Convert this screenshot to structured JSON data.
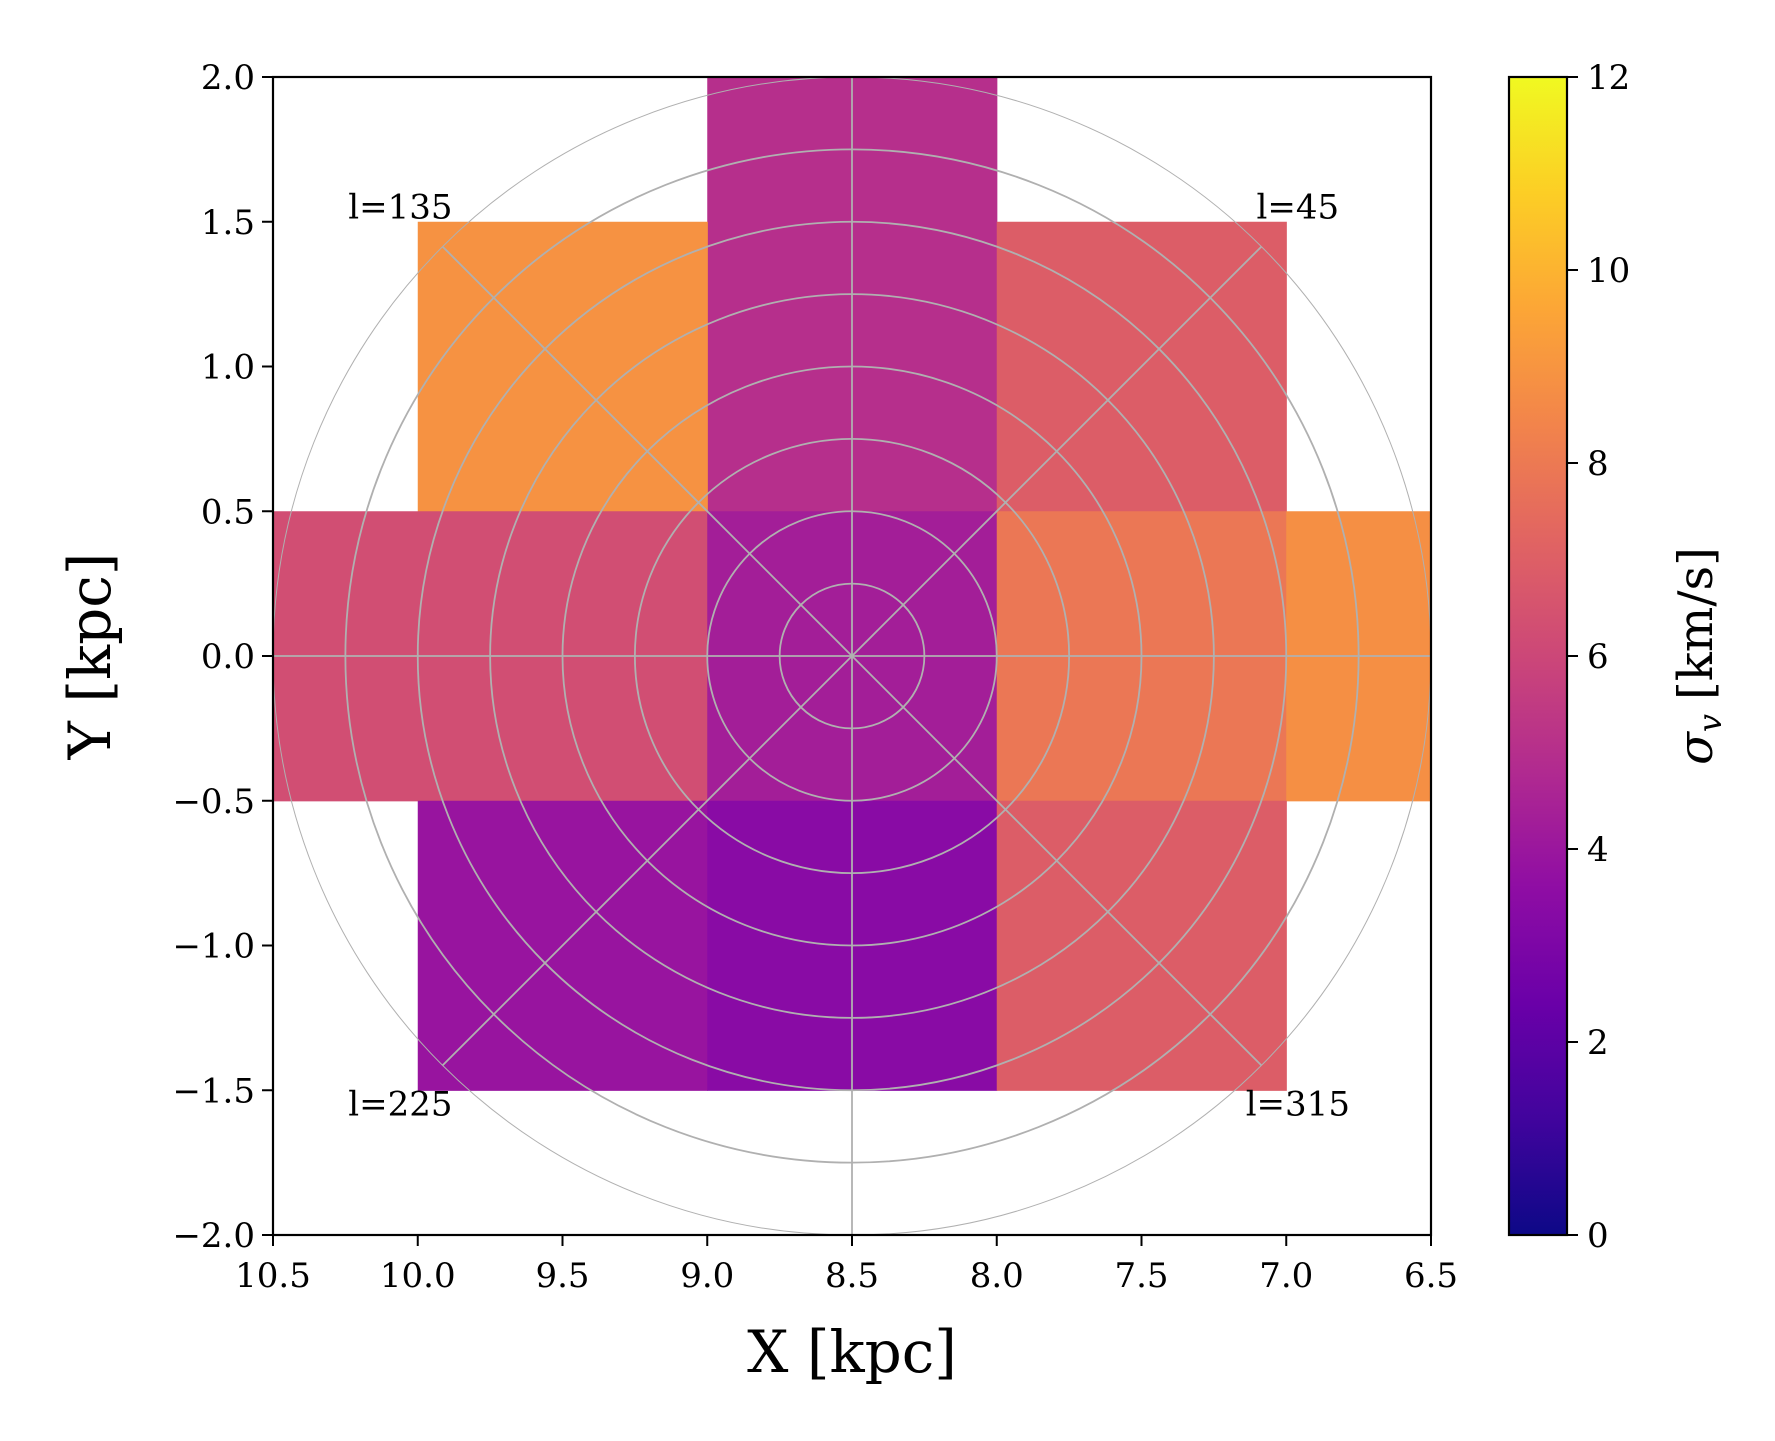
{
  "chart_data": {
    "type": "heatmap",
    "xlabel": "X [kpc]",
    "ylabel": "Y [kpc]",
    "xlim": [
      10.5,
      6.5
    ],
    "ylim": [
      -2.0,
      2.0
    ],
    "x_ticks": [
      "10.5",
      "10.0",
      "9.5",
      "9.0",
      "8.5",
      "8.0",
      "7.5",
      "7.0",
      "6.5"
    ],
    "y_ticks": [
      "2.0",
      "1.5",
      "1.0",
      "0.5",
      "0.0",
      "−0.5",
      "−1.0",
      "−1.5",
      "−2.0"
    ],
    "colorbar": {
      "label": "σv [km/s]",
      "label_symbol": "σ",
      "label_subscript": "v",
      "label_units": "[km/s]",
      "colormap": "plasma",
      "range": [
        0,
        12
      ],
      "ticks": [
        "0",
        "2",
        "4",
        "6",
        "8",
        "10",
        "12"
      ]
    },
    "cells": [
      {
        "x": [
          9.0,
          8.0
        ],
        "y": [
          0.5,
          2.0
        ],
        "value": 5.0
      },
      {
        "x": [
          10.0,
          9.0
        ],
        "y": [
          0.5,
          1.5
        ],
        "value": 8.9
      },
      {
        "x": [
          8.0,
          7.0
        ],
        "y": [
          0.5,
          1.5
        ],
        "value": 6.9
      },
      {
        "x": [
          10.5,
          9.0
        ],
        "y": [
          -0.5,
          0.5
        ],
        "value": 6.3
      },
      {
        "x": [
          9.0,
          8.0
        ],
        "y": [
          -0.5,
          0.5
        ],
        "value": 4.3
      },
      {
        "x": [
          8.0,
          7.0
        ],
        "y": [
          -0.5,
          0.5
        ],
        "value": 7.9
      },
      {
        "x": [
          7.0,
          6.5
        ],
        "y": [
          -0.5,
          0.5
        ],
        "value": 8.8
      },
      {
        "x": [
          10.0,
          9.0
        ],
        "y": [
          -1.5,
          -0.5
        ],
        "value": 3.9
      },
      {
        "x": [
          9.0,
          8.0
        ],
        "y": [
          -1.5,
          -0.5
        ],
        "value": 3.4
      },
      {
        "x": [
          8.0,
          7.0
        ],
        "y": [
          -1.5,
          -0.5
        ],
        "value": 6.9
      }
    ],
    "polar_grid": {
      "center": [
        8.5,
        0.0
      ],
      "radii": [
        0.25,
        0.5,
        0.75,
        1.0,
        1.25,
        1.5,
        1.75
      ],
      "outer_radius": 2.0,
      "spoke_angles_deg": [
        0,
        45,
        90,
        135,
        180,
        225,
        270,
        315
      ],
      "color": "#b0b0b0"
    },
    "annotations": [
      {
        "text": "l=135",
        "x": 10.06,
        "y": 1.55
      },
      {
        "text": "l=45",
        "x": 6.96,
        "y": 1.55
      },
      {
        "text": "l=225",
        "x": 10.06,
        "y": -1.55
      },
      {
        "text": "l=315",
        "x": 6.96,
        "y": -1.55
      }
    ]
  }
}
